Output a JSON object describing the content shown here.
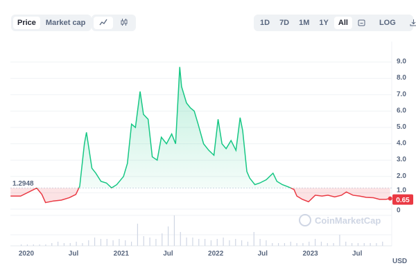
{
  "toolbar": {
    "metric_tabs": [
      {
        "label": "Price",
        "active": true
      },
      {
        "label": "Market cap",
        "active": false
      }
    ],
    "chart_types": [
      {
        "icon": "line-chart-icon",
        "active": true
      },
      {
        "icon": "candlestick-icon",
        "active": false
      }
    ],
    "ranges": [
      {
        "label": "1D"
      },
      {
        "label": "7D"
      },
      {
        "label": "1M"
      },
      {
        "label": "1Y"
      },
      {
        "label": "All",
        "active": true
      }
    ],
    "calendar_icon": "calendar-icon",
    "log_label": "LOG",
    "download_icon": "download-icon"
  },
  "watermark": "CoinMarketCap",
  "colors": {
    "up": "#16c784",
    "down": "#ea3943",
    "grid": "#eff2f5",
    "volume": "#cfd6e4"
  },
  "chart_data": {
    "type": "line",
    "baseline": 1.2948,
    "baseline_label": "1.2948",
    "current_label": "0.65",
    "currency": "USD",
    "ylim": [
      0,
      9.5
    ],
    "yticks": [
      "0",
      "1.0",
      "2.0",
      "3.0",
      "4.0",
      "5.0",
      "6.0",
      "7.0",
      "8.0",
      "9.0"
    ],
    "xticks": [
      "2020",
      "Jul",
      "2021",
      "Jul",
      "2022",
      "Jul",
      "2023",
      "Jul"
    ],
    "grid": true,
    "series": [
      {
        "x": [
          "2019-11-01",
          "2019-11-20",
          "2019-12-10",
          "2020-02-10",
          "2020-03-01",
          "2020-03-15",
          "2020-04-15",
          "2020-05-15",
          "2020-06-15",
          "2020-07-10",
          "2020-07-25",
          "2020-08-12",
          "2020-08-20",
          "2020-09-10",
          "2020-09-25",
          "2020-10-15",
          "2020-11-05",
          "2020-11-25",
          "2020-12-15",
          "2021-01-10",
          "2021-01-25",
          "2021-02-10",
          "2021-02-25",
          "2021-03-15",
          "2021-03-28",
          "2021-04-15",
          "2021-05-01",
          "2021-05-20",
          "2021-06-05",
          "2021-06-25",
          "2021-07-15",
          "2021-07-30",
          "2021-08-15",
          "2021-08-22",
          "2021-09-10",
          "2021-09-25",
          "2021-10-10",
          "2021-10-25",
          "2021-11-15",
          "2021-12-05",
          "2021-12-25",
          "2022-01-10",
          "2022-01-25",
          "2022-02-10",
          "2022-03-01",
          "2022-03-20",
          "2022-04-05",
          "2022-04-15",
          "2022-05-01",
          "2022-05-12",
          "2022-06-01",
          "2022-06-20",
          "2022-07-15",
          "2022-08-10",
          "2022-08-25",
          "2022-09-15",
          "2022-10-10",
          "2022-10-30",
          "2022-11-10",
          "2022-12-01",
          "2022-12-25",
          "2023-01-20",
          "2023-02-15",
          "2023-03-10",
          "2023-04-05",
          "2023-05-01",
          "2023-05-20",
          "2023-06-15",
          "2023-07-10",
          "2023-08-05",
          "2023-09-01",
          "2023-09-25",
          "2023-10-20",
          "2023-11-05"
        ],
        "y": [
          0.8,
          0.8,
          0.8,
          1.29,
          0.9,
          0.4,
          0.5,
          0.55,
          0.7,
          0.9,
          1.4,
          4.0,
          4.7,
          2.5,
          2.2,
          1.7,
          1.6,
          1.3,
          1.5,
          2.0,
          2.8,
          5.2,
          5.0,
          7.2,
          5.8,
          5.5,
          3.2,
          3.0,
          4.4,
          4.0,
          4.6,
          4.0,
          8.7,
          7.5,
          6.5,
          6.2,
          6.0,
          5.2,
          4.0,
          3.6,
          3.3,
          5.5,
          4.0,
          3.7,
          4.2,
          3.6,
          5.6,
          4.8,
          2.3,
          1.9,
          1.5,
          1.6,
          1.8,
          2.2,
          1.7,
          1.5,
          1.35,
          1.2,
          0.8,
          0.6,
          0.45,
          0.85,
          0.8,
          0.85,
          0.75,
          0.85,
          1.05,
          0.85,
          0.8,
          0.72,
          0.7,
          0.6,
          0.6,
          0.65
        ]
      }
    ],
    "volume": [
      1,
      1,
      1,
      1,
      1,
      2,
      3,
      2,
      2,
      3,
      2,
      4,
      6,
      5,
      5,
      4,
      5,
      4,
      3,
      16,
      7,
      6,
      5,
      9,
      14,
      22,
      10,
      6,
      6,
      5,
      5,
      4,
      5,
      6,
      4,
      5,
      4,
      3,
      10,
      5,
      4,
      2,
      2,
      2,
      3,
      2,
      2,
      3,
      5,
      3,
      2,
      2,
      8,
      3,
      2,
      2,
      2,
      2,
      2,
      3
    ]
  }
}
